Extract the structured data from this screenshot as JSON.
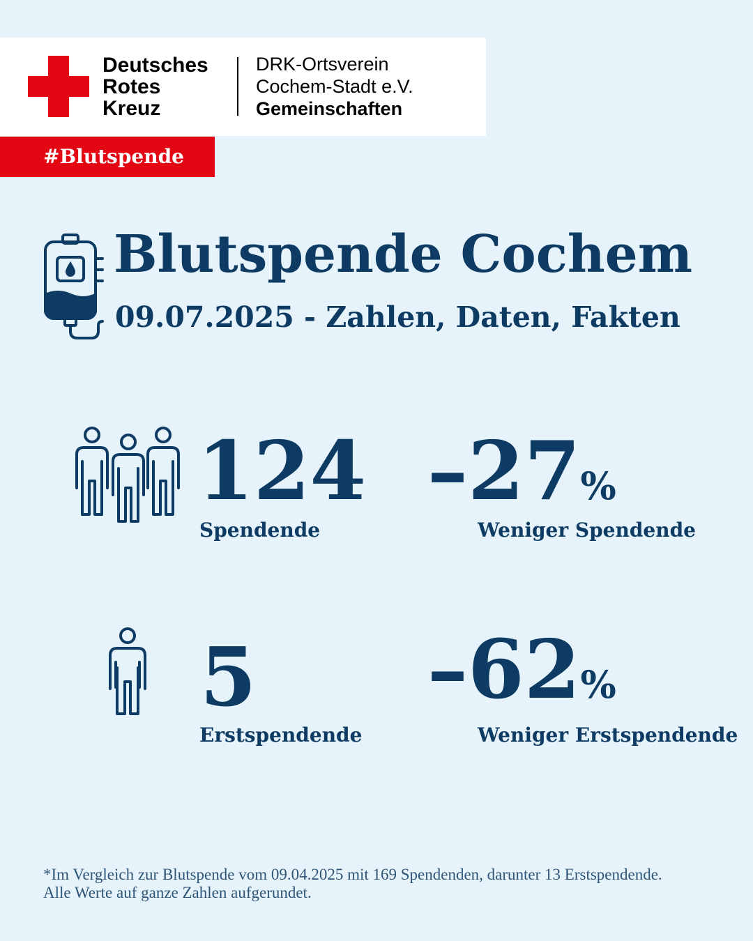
{
  "header": {
    "logo": [
      "Deutsches",
      "Rotes",
      "Kreuz"
    ],
    "org": [
      "DRK-Ortsverein",
      "Cochem-Stadt e.V.",
      "Gemeinschaften"
    ],
    "hashtag": "#Blutspende"
  },
  "title": "Blutspende Cochem",
  "subtitle": "09.07.2025 - Zahlen, Daten, Fakten",
  "stats": [
    {
      "value": "124",
      "label": "Spendende"
    },
    {
      "value": "–27",
      "unit": "%",
      "label": "Weniger Spendende"
    },
    {
      "value": "5",
      "label": "Erstspendende"
    },
    {
      "value": "–62",
      "unit": "%",
      "label": "Weniger Erstspendende"
    }
  ],
  "footnote": [
    "*Im Vergleich zur Blutspende vom 09.04.2025 mit 169 Spendenden, darunter 13 Erstspendende.",
    "Alle Werte auf ganze Zahlen aufgerundet."
  ]
}
